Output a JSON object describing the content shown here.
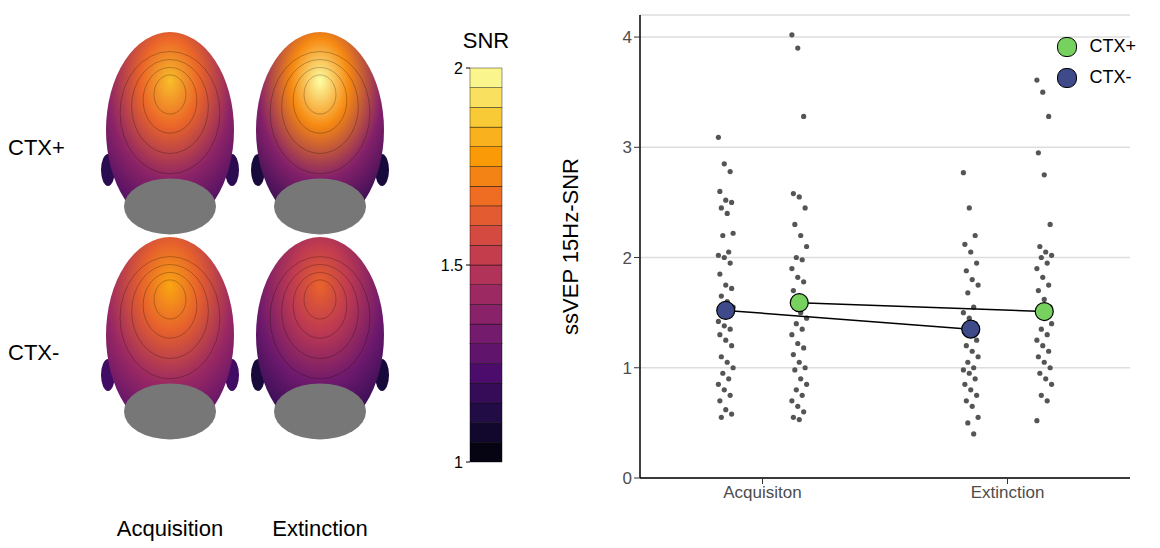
{
  "chart_data": [
    {
      "type": "topography",
      "rows": [
        "CTX+",
        "CTX-"
      ],
      "columns": [
        "Acquisition",
        "Extinction"
      ],
      "peak_snr": [
        [
          1.85,
          2.0
        ],
        [
          1.8,
          1.65
        ]
      ],
      "edge_snr": [
        [
          1.3,
          1.25
        ],
        [
          1.35,
          1.25
        ]
      ],
      "colorbar": {
        "title": "SNR",
        "range": [
          1,
          2
        ],
        "ticks": [
          1,
          1.5,
          2
        ]
      }
    },
    {
      "type": "strip",
      "categories": [
        "Acquisiton",
        "Extinction"
      ],
      "y_label": "ssVEP 15Hz-SNR",
      "ylim": [
        0,
        4.2
      ],
      "yticks": [
        0,
        1,
        2,
        3,
        4
      ],
      "grid": true,
      "legend": "top-right",
      "point_color": "#555555",
      "series": [
        {
          "name": "CTX+",
          "color": "#77d15f",
          "means": [
            1.59,
            1.51
          ],
          "points": [
            [
              4.02,
              3.9,
              3.28,
              2.58,
              2.55,
              2.45,
              2.3,
              2.2,
              2.1,
              2.0,
              1.98,
              1.9,
              1.82,
              1.78,
              1.7,
              1.65,
              1.6,
              1.55,
              1.5,
              1.45,
              1.4,
              1.35,
              1.3,
              1.22,
              1.18,
              1.12,
              1.05,
              1.0,
              0.98,
              0.9,
              0.85,
              0.8,
              0.75,
              0.7,
              0.65,
              0.6,
              0.55,
              0.53
            ],
            [
              3.61,
              3.5,
              3.28,
              2.95,
              2.75,
              2.3,
              2.1,
              2.05,
              2.02,
              2.0,
              1.95,
              1.9,
              1.82,
              1.75,
              1.7,
              1.62,
              1.55,
              1.5,
              1.45,
              1.4,
              1.35,
              1.3,
              1.25,
              1.2,
              1.15,
              1.1,
              1.05,
              1.0,
              0.95,
              0.9,
              0.85,
              0.75,
              0.7,
              0.52
            ]
          ]
        },
        {
          "name": "CTX-",
          "color": "#3e4a89",
          "means": [
            1.52,
            1.35
          ],
          "points": [
            [
              3.09,
              2.85,
              2.78,
              2.6,
              2.52,
              2.5,
              2.45,
              2.4,
              2.22,
              2.2,
              2.05,
              2.02,
              2.0,
              1.95,
              1.85,
              1.75,
              1.72,
              1.65,
              1.6,
              1.55,
              1.5,
              1.48,
              1.42,
              1.38,
              1.35,
              1.3,
              1.25,
              1.2,
              1.1,
              1.05,
              1.0,
              0.95,
              0.9,
              0.85,
              0.8,
              0.75,
              0.7,
              0.62,
              0.58,
              0.55
            ],
            [
              2.77,
              2.45,
              2.2,
              2.12,
              2.05,
              1.95,
              1.88,
              1.8,
              1.75,
              1.68,
              1.55,
              1.5,
              1.45,
              1.4,
              1.35,
              1.3,
              1.25,
              1.2,
              1.15,
              1.1,
              1.05,
              1.0,
              0.98,
              0.95,
              0.9,
              0.85,
              0.8,
              0.75,
              0.7,
              0.65,
              0.55,
              0.5,
              0.4
            ]
          ]
        }
      ]
    }
  ]
}
